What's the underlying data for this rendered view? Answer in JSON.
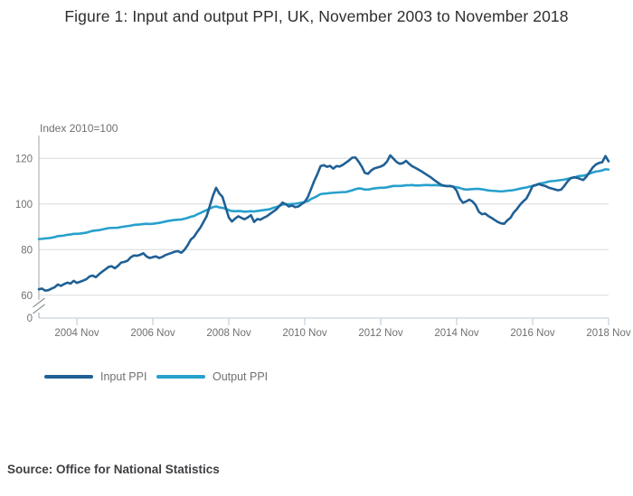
{
  "title": "Figure 1: Input and output PPI, UK, November 2003 to November 2018",
  "source_note": "Source: Office for National Statistics",
  "colors": {
    "input_ppi": "#206095",
    "output_ppi": "#27a0cc",
    "gridline": "#dadada",
    "y_axis_line": "#b1b4b7",
    "x_axis_line": "#c6d4de",
    "tick_text": "#6f7071",
    "axis_break": "#8f9599",
    "title_text": "#2e2e2e",
    "source_text": "#3f4043"
  },
  "chart_data": {
    "type": "line",
    "title": "Figure 1: Input and output PPI, UK, November 2003 to November 2018",
    "y_axis_title": "Index 2010=100",
    "x_start": "2003 Nov",
    "x_end": "2018 Nov",
    "x_unit": "month",
    "grid": "horizontal",
    "legend_position": "bottom-left",
    "axis_break_between_0_and_60": true,
    "y_ticks": [
      60,
      80,
      100,
      120
    ],
    "y_zero_label": "0",
    "y_render_range": [
      50,
      130
    ],
    "x_tick_month_indices": [
      12,
      36,
      60,
      84,
      108,
      132,
      156,
      180
    ],
    "x_tick_labels": [
      "2004 Nov",
      "2006 Nov",
      "2008 Nov",
      "2010 Nov",
      "2012 Nov",
      "2014 Nov",
      "2016 Nov",
      "2018 Nov"
    ],
    "series": [
      {
        "name": "Input PPI",
        "color": "#206095",
        "values": [
          62.6,
          62.9,
          62.0,
          62.2,
          62.9,
          63.5,
          64.7,
          64.1,
          64.9,
          65.5,
          65.1,
          66.3,
          65.4,
          65.9,
          66.4,
          67.0,
          68.2,
          68.6,
          67.9,
          69.2,
          70.3,
          71.3,
          72.4,
          72.7,
          71.8,
          72.9,
          74.3,
          74.6,
          75.1,
          76.6,
          77.4,
          77.3,
          77.7,
          78.4,
          77.0,
          76.3,
          76.7,
          77.0,
          76.3,
          76.8,
          77.6,
          78.1,
          78.6,
          79.1,
          79.3,
          78.6,
          79.9,
          81.9,
          84.4,
          85.6,
          87.7,
          89.6,
          92.1,
          94.6,
          99.1,
          103.6,
          107.1,
          104.6,
          103.1,
          98.6,
          94.1,
          92.3,
          93.6,
          94.6,
          93.9,
          93.3,
          94.1,
          95.1,
          92.1,
          93.4,
          93.1,
          93.9,
          94.6,
          95.6,
          96.6,
          97.6,
          99.1,
          100.6,
          99.9,
          98.9,
          99.3,
          98.6,
          98.9,
          99.9,
          100.9,
          103.1,
          106.6,
          110.1,
          113.1,
          116.6,
          117.0,
          116.3,
          116.7,
          115.5,
          116.6,
          116.4,
          117.1,
          118.1,
          119.1,
          120.3,
          120.4,
          118.6,
          116.4,
          113.6,
          113.2,
          114.7,
          115.6,
          116.0,
          116.4,
          117.1,
          118.6,
          121.3,
          119.9,
          118.4,
          117.6,
          117.9,
          118.9,
          117.6,
          116.5,
          115.8,
          115.0,
          114.2,
          113.3,
          112.4,
          111.5,
          110.4,
          109.4,
          108.5,
          108.0,
          107.8,
          107.9,
          107.5,
          105.8,
          102.3,
          100.5,
          101.1,
          101.9,
          101.1,
          99.5,
          96.6,
          95.5,
          95.8,
          94.7,
          93.9,
          93.0,
          92.1,
          91.5,
          91.3,
          92.8,
          93.9,
          96.2,
          97.7,
          99.6,
          101.1,
          102.3,
          104.9,
          107.9,
          108.3,
          108.7,
          108.2,
          107.9,
          107.2,
          106.8,
          106.4,
          106.0,
          106.3,
          107.9,
          109.8,
          111.3,
          111.7,
          111.5,
          111.0,
          110.5,
          112.0,
          114.0,
          116.0,
          117.3,
          118.0,
          118.3,
          121.0,
          118.7
        ]
      },
      {
        "name": "Output PPI",
        "color": "#27a0cc",
        "values": [
          84.6,
          84.7,
          84.9,
          85.0,
          85.2,
          85.5,
          85.9,
          86.0,
          86.2,
          86.5,
          86.6,
          86.9,
          86.9,
          87.0,
          87.2,
          87.4,
          87.8,
          88.2,
          88.4,
          88.5,
          88.8,
          89.1,
          89.4,
          89.5,
          89.5,
          89.6,
          89.9,
          90.1,
          90.3,
          90.5,
          90.8,
          90.9,
          91.0,
          91.2,
          91.3,
          91.2,
          91.3,
          91.5,
          91.7,
          92.0,
          92.3,
          92.6,
          92.8,
          93.0,
          93.1,
          93.2,
          93.5,
          93.9,
          94.4,
          94.7,
          95.4,
          96.0,
          96.7,
          97.3,
          98.0,
          98.6,
          98.9,
          98.5,
          98.3,
          97.9,
          97.3,
          96.9,
          96.8,
          96.9,
          96.8,
          96.6,
          96.7,
          96.8,
          96.7,
          96.9,
          97.1,
          97.3,
          97.5,
          97.7,
          98.3,
          98.6,
          99.2,
          99.7,
          99.9,
          99.9,
          100.0,
          100.1,
          100.3,
          100.6,
          100.9,
          101.2,
          102.2,
          102.8,
          103.5,
          104.3,
          104.5,
          104.6,
          104.8,
          104.9,
          105.0,
          105.1,
          105.2,
          105.2,
          105.6,
          106.0,
          106.5,
          106.8,
          106.7,
          106.3,
          106.3,
          106.6,
          106.8,
          107.0,
          107.1,
          107.1,
          107.3,
          107.6,
          107.9,
          107.9,
          107.9,
          108.0,
          108.2,
          108.2,
          108.3,
          108.1,
          108.1,
          108.2,
          108.3,
          108.3,
          108.2,
          108.3,
          108.2,
          108.1,
          108.0,
          107.9,
          107.8,
          107.5,
          107.3,
          107.0,
          106.5,
          106.3,
          106.4,
          106.5,
          106.6,
          106.6,
          106.4,
          106.2,
          105.9,
          105.8,
          105.7,
          105.6,
          105.5,
          105.6,
          105.8,
          105.9,
          106.1,
          106.4,
          106.7,
          107.0,
          107.2,
          107.6,
          107.8,
          108.2,
          108.9,
          109.1,
          109.4,
          109.8,
          110.0,
          110.1,
          110.3,
          110.5,
          110.7,
          111.0,
          111.3,
          111.5,
          112.0,
          112.3,
          112.4,
          112.7,
          113.3,
          113.8,
          114.2,
          114.4,
          114.7,
          115.2,
          115.1
        ]
      }
    ]
  }
}
